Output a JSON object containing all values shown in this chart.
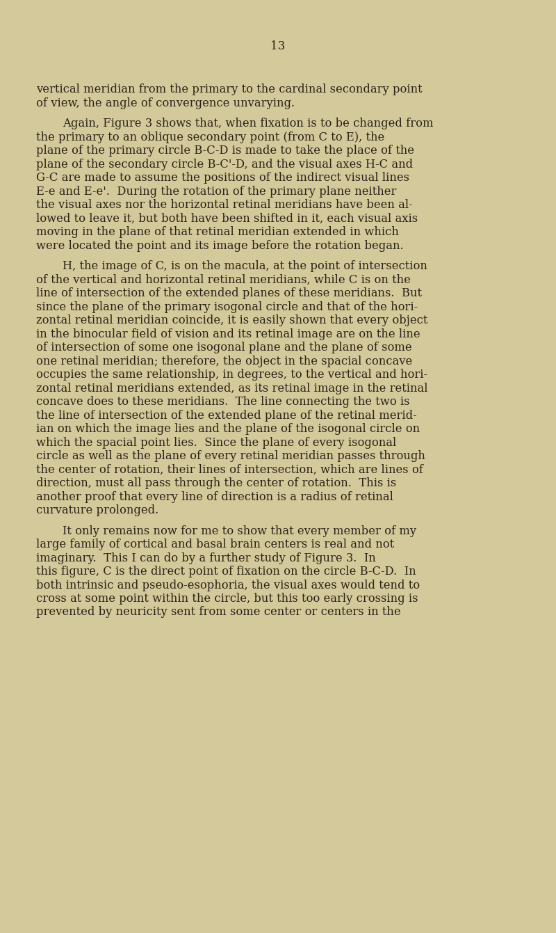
{
  "background_color": "#d4c99a",
  "text_color": "#2a2318",
  "page_number": "13",
  "figsize": [
    8.0,
    13.41
  ],
  "dpi": 100,
  "font_size": 11.8,
  "title_font_size": 12.2,
  "paragraphs": [
    {
      "indent": false,
      "lines": [
        "vertical meridian from the primary to the cardinal secondary point",
        "of view, the angle of convergence unvarying."
      ]
    },
    {
      "indent": true,
      "lines": [
        "Again, Figure 3 shows that, when fixation is to be changed from",
        "the primary to an oblique secondary point (from C to E), the",
        "plane of the primary circle B-C-D is made to take the place of the",
        "plane of the secondary circle B-C'-D, and the visual axes H-C and",
        "G-C are made to assume the positions of the indirect visual lines",
        "E-e and E-e'.  During the rotation of the primary plane neither",
        "the visual axes nor the horizontal retinal meridians have been al-",
        "lowed to leave it, but both have been shifted in it, each visual axis",
        "moving in the plane of that retinal meridian extended in which",
        "were located the point and its image before the rotation began."
      ]
    },
    {
      "indent": true,
      "lines": [
        "H, the image of C, is on the macula, at the point of intersection",
        "of the vertical and horizontal retinal meridians, while C is on the",
        "line of intersection of the extended planes of these meridians.  But",
        "since the plane of the primary isogonal circle and that of the hori-",
        "zontal retinal meridian coincide, it is easily shown that every object",
        "in the binocular field of vision and its retinal image are on the line",
        "of intersection of some one isogonal plane and the plane of some",
        "one retinal meridian; therefore, the object in the spacial concave",
        "occupies the same relationship, in degrees, to the vertical and hori-",
        "zontal retinal meridians extended, as its retinal image in the retinal",
        "concave does to these meridians.  The line connecting the two is",
        "the line of intersection of the extended plane of the retinal merid-",
        "ian on which the image lies and the plane of the isogonal circle on",
        "which the spacial point lies.  Since the plane of every isogonal",
        "circle as well as the plane of every retinal meridian passes through",
        "the center of rotation, their lines of intersection, which are lines of",
        "direction, must all pass through the center of rotation.  This is",
        "another proof that every line of direction is a radius of retinal",
        "curvature prolonged."
      ]
    },
    {
      "indent": true,
      "lines": [
        "It only remains now for me to show that every member of my",
        "large family of cortical and basal brain centers is real and not",
        "imaginary.  This I can do by a further study of Figure 3.  In",
        "this figure, C is the direct point of fixation on the circle B-C-D.  In",
        "both intrinsic and pseudo-esophoria, the visual axes would tend to",
        "cross at some point within the circle, but this too early crossing is",
        "prevented by neuricity sent from some center or centers in the"
      ]
    }
  ]
}
